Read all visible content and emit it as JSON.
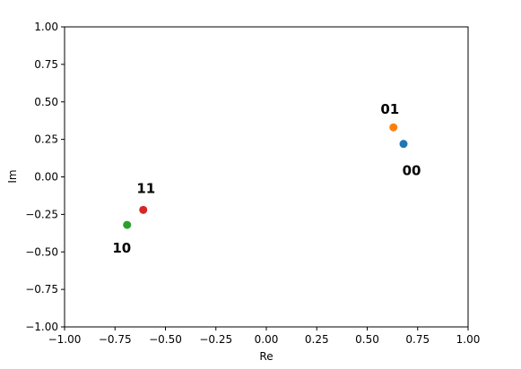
{
  "chart_data": {
    "type": "scatter",
    "title": "",
    "xlabel": "Re",
    "ylabel": "Im",
    "xlim": [
      -1.0,
      1.0
    ],
    "ylim": [
      -1.0,
      1.0
    ],
    "xticks": [
      "−1.00",
      "−0.75",
      "−0.50",
      "−0.25",
      "0.00",
      "0.25",
      "0.50",
      "0.75",
      "1.00"
    ],
    "yticks": [
      "−1.00",
      "−0.75",
      "−0.50",
      "−0.25",
      "0.00",
      "0.25",
      "0.50",
      "0.75",
      "1.00"
    ],
    "grid": false,
    "points": [
      {
        "label": "00",
        "x": 0.68,
        "y": 0.22,
        "color": "#1f77b4",
        "label_position": "below-right"
      },
      {
        "label": "01",
        "x": 0.63,
        "y": 0.33,
        "color": "#ff7f0e",
        "label_position": "above-left"
      },
      {
        "label": "10",
        "x": -0.69,
        "y": -0.32,
        "color": "#2ca02c",
        "label_position": "below-left"
      },
      {
        "label": "11",
        "x": -0.61,
        "y": -0.22,
        "color": "#d62728",
        "label_position": "above"
      }
    ]
  }
}
